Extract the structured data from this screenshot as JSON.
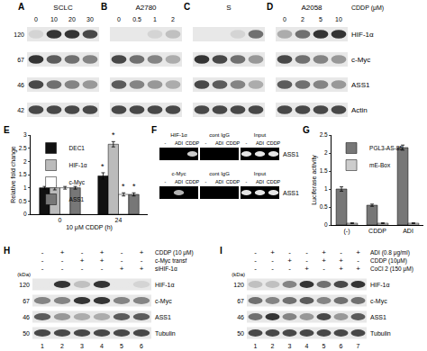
{
  "top_blots": {
    "kda": [
      120,
      67,
      46,
      42
    ],
    "proteins": [
      "HIF-1α",
      "c-Myc",
      "ASS1",
      "Actin"
    ],
    "treatment": "CDDP (μM)",
    "panels": [
      {
        "panel_label": "A",
        "cell_line": "SCLC",
        "lanes": [
          0,
          10,
          20,
          30
        ],
        "bands": [
          [
            0.1,
            0.9,
            0.9,
            0.8
          ],
          [
            0.9,
            0.7,
            0.6,
            0.5
          ],
          [
            0.8,
            0.6,
            0.5,
            0.4
          ],
          [
            0.8,
            0.8,
            0.8,
            0.8
          ]
        ]
      },
      {
        "panel_label": "B",
        "cell_line": "A2780",
        "lanes": [
          0,
          0.5,
          1,
          2
        ],
        "bands": [
          [
            0,
            0,
            0.1,
            0.2
          ],
          [
            0.8,
            0.6,
            0.5,
            0.3
          ],
          [
            0.7,
            0.5,
            0.4,
            0.3
          ],
          [
            0.8,
            0.8,
            0.8,
            0.8
          ]
        ]
      },
      {
        "panel_label": "C",
        "cell_line": "S",
        "bands": [
          [
            0,
            0,
            0.1,
            0.6
          ],
          [
            0.9,
            0.8,
            0.6,
            0.4
          ],
          [
            0.8,
            0.7,
            0.5,
            0.3
          ],
          [
            0.8,
            0.8,
            0.8,
            0.8
          ]
        ]
      },
      {
        "panel_label": "D",
        "cell_line": "A2058",
        "lanes": [
          0,
          2,
          5,
          10
        ],
        "bands": [
          [
            0.3,
            0.6,
            0.9,
            0.9
          ],
          [
            0.8,
            0.6,
            0.5,
            0.4
          ],
          [
            0.7,
            0.6,
            0.5,
            0.4
          ],
          [
            0.8,
            0.8,
            0.8,
            0.8
          ]
        ]
      }
    ]
  },
  "chart_data": [
    {
      "panel_label": "E",
      "type": "bar",
      "categories": [
        "0",
        "24"
      ],
      "x_label": "10 μM CDDP (h)",
      "y_label": "Relative fold change",
      "ylim": [
        0,
        3
      ],
      "yticks": [
        0,
        0.5,
        1,
        1.5,
        2,
        2.5,
        3
      ],
      "grid": false,
      "legend": "top-left",
      "series": [
        {
          "name": "DEC1",
          "color": "#111111",
          "values": [
            1,
            1.45
          ],
          "errors": [
            0.05,
            0.12
          ],
          "asterisks": [
            null,
            "*"
          ]
        },
        {
          "name": "HIF-1α",
          "color": "#bbbbbb",
          "values": [
            1,
            2.65
          ],
          "errors": [
            0.08,
            0.1
          ],
          "asterisks": [
            null,
            "*"
          ]
        },
        {
          "name": "c-Myc",
          "color": "#ffffff",
          "values": [
            1,
            0.75
          ],
          "errors": [
            0.05,
            0.06
          ],
          "asterisks": [
            null,
            "*"
          ]
        },
        {
          "name": "ASS1",
          "color": "#777777",
          "values": [
            1,
            0.75
          ],
          "errors": [
            0.05,
            0.06
          ],
          "asterisks": [
            null,
            "*"
          ]
        }
      ]
    },
    {
      "panel_label": "G",
      "type": "bar",
      "categories": [
        "(-)",
        "CDDP",
        "ADI"
      ],
      "y_label": "Luciferase activity",
      "ylim": [
        0,
        2.5
      ],
      "yticks": [
        0,
        0.5,
        1,
        1.5,
        2,
        2.5
      ],
      "grid": false,
      "legend": "top-left",
      "series": [
        {
          "name": "PGL3-AS-85",
          "color": "#777777",
          "values": [
            1.0,
            0.55,
            2.15
          ],
          "errors": [
            0.06,
            0.03,
            0.07
          ]
        },
        {
          "name": "mE-Box",
          "color": "#cccccc",
          "values": [
            0.05,
            0.05,
            0.05
          ],
          "errors": [
            0.01,
            0.01,
            0.01
          ]
        }
      ]
    }
  ],
  "chip": {
    "panel_label": "F",
    "gels": [
      {
        "groups": [
          "HIF-1α",
          "cont IgG",
          "Input"
        ],
        "lanes": [
          "-",
          "ADI",
          "CDDP"
        ],
        "row": "ASS1",
        "bands": [
          [
            0,
            0,
            0.8
          ],
          [
            0,
            0,
            0
          ],
          [
            0.9,
            0.9,
            0.9
          ]
        ]
      },
      {
        "groups": [
          "c-Myc",
          "cont IgG",
          "Input"
        ],
        "lanes": [
          "-",
          "ADI",
          "CDDP"
        ],
        "row": "ASS1",
        "bands": [
          [
            0,
            0.7,
            0
          ],
          [
            0,
            0,
            0
          ],
          [
            0.9,
            0.9,
            0.9
          ]
        ]
      }
    ]
  },
  "treatment_blots": [
    {
      "panel_label": "H",
      "unit": "(kDa)",
      "lanes": [
        1,
        2,
        3,
        4,
        5,
        6
      ],
      "conditions": [
        {
          "name": "CDDP (10 μM)",
          "signs": [
            "-",
            "+",
            "-",
            "+",
            "-",
            "+"
          ]
        },
        {
          "name": "c-Myc transf",
          "signs": [
            "-",
            "-",
            "+",
            "+",
            "-",
            "-"
          ]
        },
        {
          "name": "siHIF-1α",
          "signs": [
            "-",
            "-",
            "-",
            "-",
            "+",
            "+"
          ]
        }
      ],
      "rows": [
        {
          "kda": 120,
          "protein": "HIF-1α",
          "bands": [
            0,
            0.9,
            0.2,
            0.9,
            0,
            0.1
          ]
        },
        {
          "kda": 67,
          "protein": "c-Myc",
          "bands": [
            0.5,
            0.5,
            0.9,
            0.9,
            0.5,
            0.5
          ]
        },
        {
          "kda": 46,
          "protein": "ASS1",
          "bands": [
            0.7,
            0.4,
            0.3,
            0.3,
            0.7,
            0.7
          ]
        },
        {
          "kda": 50,
          "protein": "Tubulin",
          "bands": [
            0.8,
            0.8,
            0.8,
            0.8,
            0.8,
            0.8
          ]
        }
      ]
    },
    {
      "panel_label": "I",
      "unit": "(kDa)",
      "lanes": [
        1,
        2,
        3,
        4,
        5,
        6,
        7
      ],
      "conditions": [
        {
          "name": "ADI (0.8 μg/ml)",
          "signs": [
            "-",
            "+",
            "-",
            "-",
            "+",
            "-",
            "+"
          ]
        },
        {
          "name": "CDDP (10μM)",
          "signs": [
            "-",
            "-",
            "+",
            "-",
            "+",
            "+",
            "-"
          ]
        },
        {
          "name": "CoCl 2 (150 μM)",
          "signs": [
            "-",
            "-",
            "-",
            "+",
            "-",
            "+",
            "+"
          ]
        }
      ],
      "rows": [
        {
          "kda": 120,
          "protein": "HIF-1α",
          "bands": [
            0.2,
            0.2,
            0.5,
            0.9,
            0.6,
            0.8,
            0.9
          ]
        },
        {
          "kda": 67,
          "protein": "c-Myc",
          "bands": [
            0.6,
            0.5,
            0.6,
            0.7,
            0.5,
            0.6,
            0.6
          ]
        },
        {
          "kda": 46,
          "protein": "ASS1",
          "bands": [
            0.6,
            0.9,
            0.5,
            0.4,
            0.8,
            0.4,
            0.7
          ]
        },
        {
          "kda": 50,
          "protein": "Tubulin",
          "bands": [
            0.8,
            0.8,
            0.8,
            0.8,
            0.8,
            0.8,
            0.8
          ]
        }
      ]
    }
  ]
}
